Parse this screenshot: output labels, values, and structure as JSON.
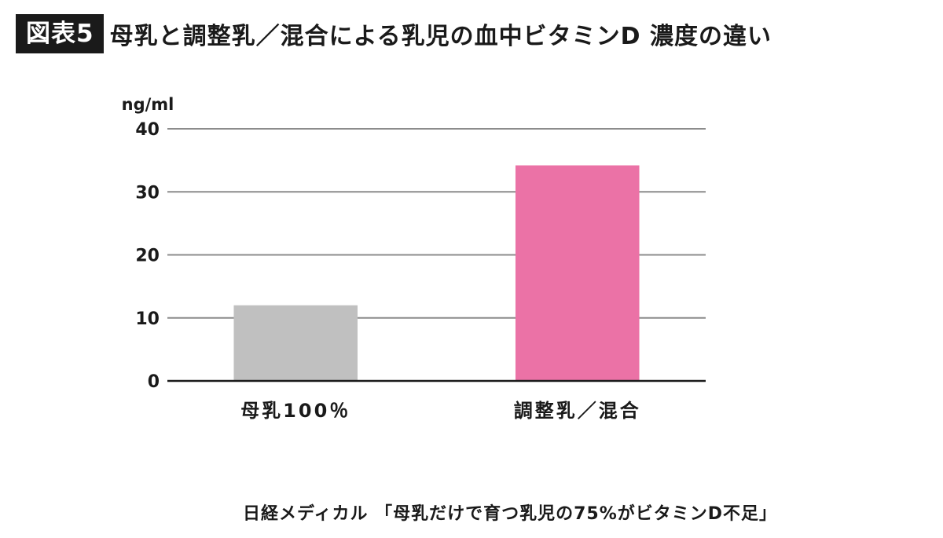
{
  "header": {
    "figure_label": "図表5",
    "title": "母乳と調整乳／混合による乳児の血中ビタミンD 濃度の違い"
  },
  "source": "日経メディカル 「母乳だけで育つ乳児の75%がビタミンD不足」",
  "chart_data": {
    "type": "bar",
    "title": "母乳と調整乳／混合による乳児の血中ビタミンD 濃度の違い",
    "ylabel": "ng/ml",
    "xlabel": "",
    "categories": [
      "母乳100％",
      "調整乳／混合"
    ],
    "values": [
      12,
      34.2
    ],
    "colors": [
      "#c0c0c0",
      "#eb72a6"
    ],
    "ylim": [
      0,
      40
    ],
    "yticks": [
      0,
      10,
      20,
      30,
      40
    ],
    "grid": true,
    "legend": "none"
  }
}
